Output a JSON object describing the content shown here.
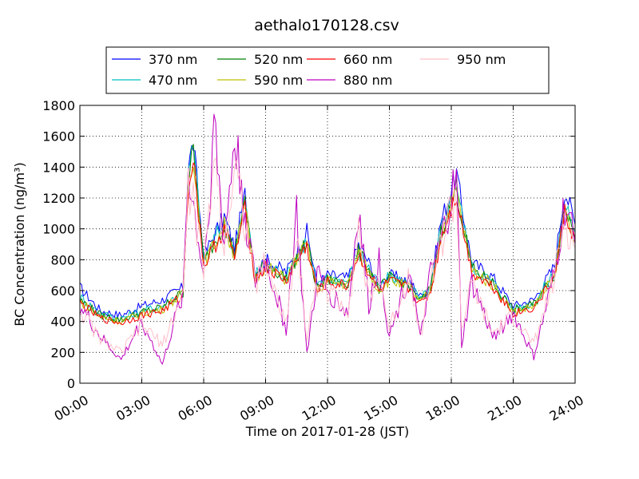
{
  "chart_data": {
    "type": "line",
    "title": "aethalo170128.csv",
    "xlabel": "Time on 2017-01-28 (JST)",
    "ylabel": "BC Concentration (ng/m³)",
    "xlim": [
      0,
      24
    ],
    "ylim": [
      0,
      1800
    ],
    "xtick_labels": [
      "00:00",
      "03:00",
      "06:00",
      "09:00",
      "12:00",
      "15:00",
      "18:00",
      "21:00",
      "24:00"
    ],
    "ytick_labels": [
      "0",
      "200",
      "400",
      "600",
      "800",
      "1000",
      "1200",
      "1400",
      "1600",
      "1800"
    ],
    "grid": true,
    "legend_position": "top",
    "x_hours": [
      0,
      1,
      2,
      3,
      4,
      5,
      5.25,
      5.5,
      6,
      6.5,
      7,
      7.5,
      8,
      8.5,
      9,
      10,
      10.5,
      11,
      11.5,
      12,
      13,
      13.5,
      14,
      14.5,
      15,
      16,
      16.5,
      17,
      17.5,
      18,
      18.25,
      18.5,
      19,
      20,
      21,
      22,
      23,
      23.5,
      24
    ],
    "series": [
      {
        "name": "370 nm",
        "color": "#0000ff",
        "values": [
          620,
          470,
          440,
          500,
          540,
          620,
          1400,
          1560,
          820,
          960,
          1080,
          880,
          1220,
          720,
          800,
          720,
          850,
          980,
          640,
          700,
          680,
          900,
          780,
          640,
          700,
          660,
          560,
          640,
          1050,
          1250,
          1360,
          1150,
          780,
          690,
          500,
          540,
          760,
          1260,
          1030
        ]
      },
      {
        "name": "470 nm",
        "color": "#00bfbf",
        "values": [
          560,
          450,
          420,
          470,
          500,
          600,
          1350,
          1540,
          800,
          930,
          1050,
          860,
          1180,
          700,
          780,
          690,
          820,
          930,
          620,
          680,
          660,
          860,
          750,
          620,
          690,
          640,
          540,
          620,
          1000,
          1200,
          1300,
          1100,
          750,
          660,
          480,
          520,
          720,
          1180,
          980
        ]
      },
      {
        "name": "520 nm",
        "color": "#008000",
        "values": [
          540,
          440,
          410,
          460,
          490,
          590,
          1320,
          1500,
          780,
          910,
          1030,
          840,
          1160,
          690,
          770,
          680,
          810,
          910,
          610,
          670,
          650,
          850,
          740,
          610,
          680,
          630,
          530,
          610,
          980,
          1180,
          1270,
          1080,
          740,
          650,
          470,
          510,
          700,
          1150,
          960
        ]
      },
      {
        "name": "590 nm",
        "color": "#bfbf00",
        "values": [
          530,
          430,
          400,
          450,
          480,
          580,
          1300,
          1480,
          770,
          900,
          1020,
          830,
          1140,
          680,
          760,
          670,
          800,
          900,
          600,
          660,
          640,
          840,
          730,
          600,
          670,
          620,
          520,
          600,
          960,
          1160,
          1250,
          1060,
          730,
          640,
          460,
          500,
          690,
          1130,
          940
        ]
      },
      {
        "name": "660 nm",
        "color": "#ff0000",
        "values": [
          520,
          420,
          390,
          440,
          470,
          570,
          1280,
          1460,
          760,
          880,
          1000,
          820,
          1120,
          670,
          750,
          660,
          790,
          890,
          590,
          650,
          630,
          830,
          720,
          590,
          660,
          610,
          510,
          590,
          940,
          1140,
          1230,
          1040,
          720,
          630,
          450,
          490,
          680,
          1110,
          920
        ]
      },
      {
        "name": "880 nm",
        "color": "#bf00bf",
        "values": [
          500,
          300,
          150,
          400,
          120,
          600,
          1400,
          1150,
          700,
          1670,
          900,
          1590,
          1100,
          650,
          800,
          350,
          1100,
          180,
          700,
          600,
          450,
          1140,
          500,
          800,
          300,
          750,
          280,
          700,
          900,
          1200,
          1300,
          250,
          650,
          300,
          450,
          170,
          700,
          1150,
          900
        ]
      },
      {
        "name": "950 nm",
        "color": "#ffc0cb",
        "values": [
          480,
          280,
          200,
          380,
          250,
          580,
          1250,
          1180,
          700,
          1500,
          880,
          1450,
          1050,
          640,
          780,
          380,
          980,
          300,
          650,
          600,
          480,
          1000,
          520,
          720,
          350,
          720,
          300,
          680,
          880,
          1150,
          1200,
          350,
          640,
          320,
          430,
          250,
          680,
          1050,
          880
        ]
      }
    ]
  }
}
